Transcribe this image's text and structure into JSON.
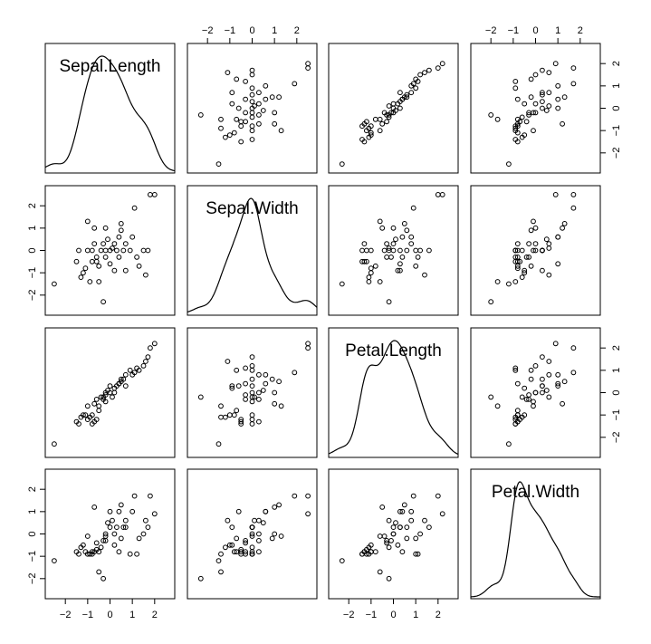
{
  "chart_data": {
    "type": "scatter",
    "chart_kind": "scatterplot-matrix",
    "variables": [
      "Sepal.Length",
      "Sepal.Width",
      "Petal.Length",
      "Petal.Width"
    ],
    "diagonal": "density",
    "axis_range": [
      -2.9,
      2.9
    ],
    "ticks": [
      -2,
      -1,
      0,
      1,
      2
    ],
    "grid": false,
    "observations": [
      [
        -2.5,
        -1.5,
        -2.3,
        -1.2
      ],
      [
        -1.5,
        -0.5,
        -1.3,
        -0.8
      ],
      [
        -1.4,
        0.0,
        -1.4,
        -0.9
      ],
      [
        -1.3,
        -1.2,
        -1.1,
        -0.6
      ],
      [
        -1.2,
        -1.0,
        -1.0,
        -0.5
      ],
      [
        -1.1,
        -0.8,
        -1.0,
        -0.8
      ],
      [
        -1.0,
        0.0,
        -1.2,
        -0.9
      ],
      [
        -0.9,
        -1.4,
        -1.1,
        -0.9
      ],
      [
        -0.8,
        0.0,
        -1.0,
        -0.8
      ],
      [
        -0.8,
        -0.5,
        -1.4,
        -0.9
      ],
      [
        -0.7,
        0.3,
        -1.3,
        -0.8
      ],
      [
        -0.6,
        -0.5,
        -1.2,
        -0.7
      ],
      [
        -0.5,
        -0.7,
        -0.8,
        -0.8
      ],
      [
        -1.0,
        1.3,
        -0.6,
        -0.1
      ],
      [
        -0.5,
        -1.4,
        -0.6,
        -1.7
      ],
      [
        -0.3,
        -2.3,
        -0.2,
        -2.0
      ],
      [
        -0.4,
        0.0,
        -0.2,
        -0.6
      ],
      [
        -0.3,
        0.3,
        -0.3,
        -0.3
      ],
      [
        -0.2,
        1.0,
        0.0,
        0.0
      ],
      [
        -0.2,
        -0.3,
        -0.1,
        -0.3
      ],
      [
        0.0,
        0.0,
        0.0,
        0.3
      ],
      [
        0.0,
        -0.6,
        0.3,
        1.0
      ],
      [
        0.1,
        0.1,
        -0.2,
        0.6
      ],
      [
        0.2,
        0.3,
        0.0,
        0.0
      ],
      [
        0.3,
        0.0,
        0.3,
        0.3
      ],
      [
        0.4,
        0.6,
        0.4,
        1.0
      ],
      [
        0.5,
        1.2,
        0.5,
        1.3
      ],
      [
        0.4,
        -0.3,
        0.4,
        -0.8
      ],
      [
        0.6,
        0.0,
        0.6,
        0.3
      ],
      [
        0.7,
        -0.9,
        0.3,
        0.3
      ],
      [
        0.7,
        0.3,
        0.8,
        0.6
      ],
      [
        0.9,
        0.0,
        1.0,
        -0.9
      ],
      [
        1.0,
        0.6,
        0.8,
        1.0
      ],
      [
        1.1,
        1.9,
        0.9,
        1.7
      ],
      [
        1.2,
        -0.3,
        1.1,
        -0.9
      ],
      [
        1.3,
        -0.7,
        1.0,
        -0.2
      ],
      [
        1.5,
        0.0,
        1.2,
        0.0
      ],
      [
        1.6,
        -1.1,
        1.4,
        0.6
      ],
      [
        1.7,
        0.0,
        1.6,
        0.3
      ],
      [
        1.8,
        2.5,
        2.0,
        1.7
      ],
      [
        2.0,
        2.5,
        2.2,
        0.9
      ],
      [
        -0.6,
        -0.3,
        -0.3,
        -0.4
      ],
      [
        -0.1,
        0.5,
        0.1,
        0.5
      ],
      [
        -0.7,
        1.0,
        -0.5,
        1.2
      ],
      [
        0.2,
        -0.9,
        0.2,
        -0.5
      ],
      [
        0.5,
        0.9,
        0.6,
        -0.2
      ],
      [
        -0.2,
        0.0,
        -0.4,
        -0.1
      ]
    ]
  }
}
